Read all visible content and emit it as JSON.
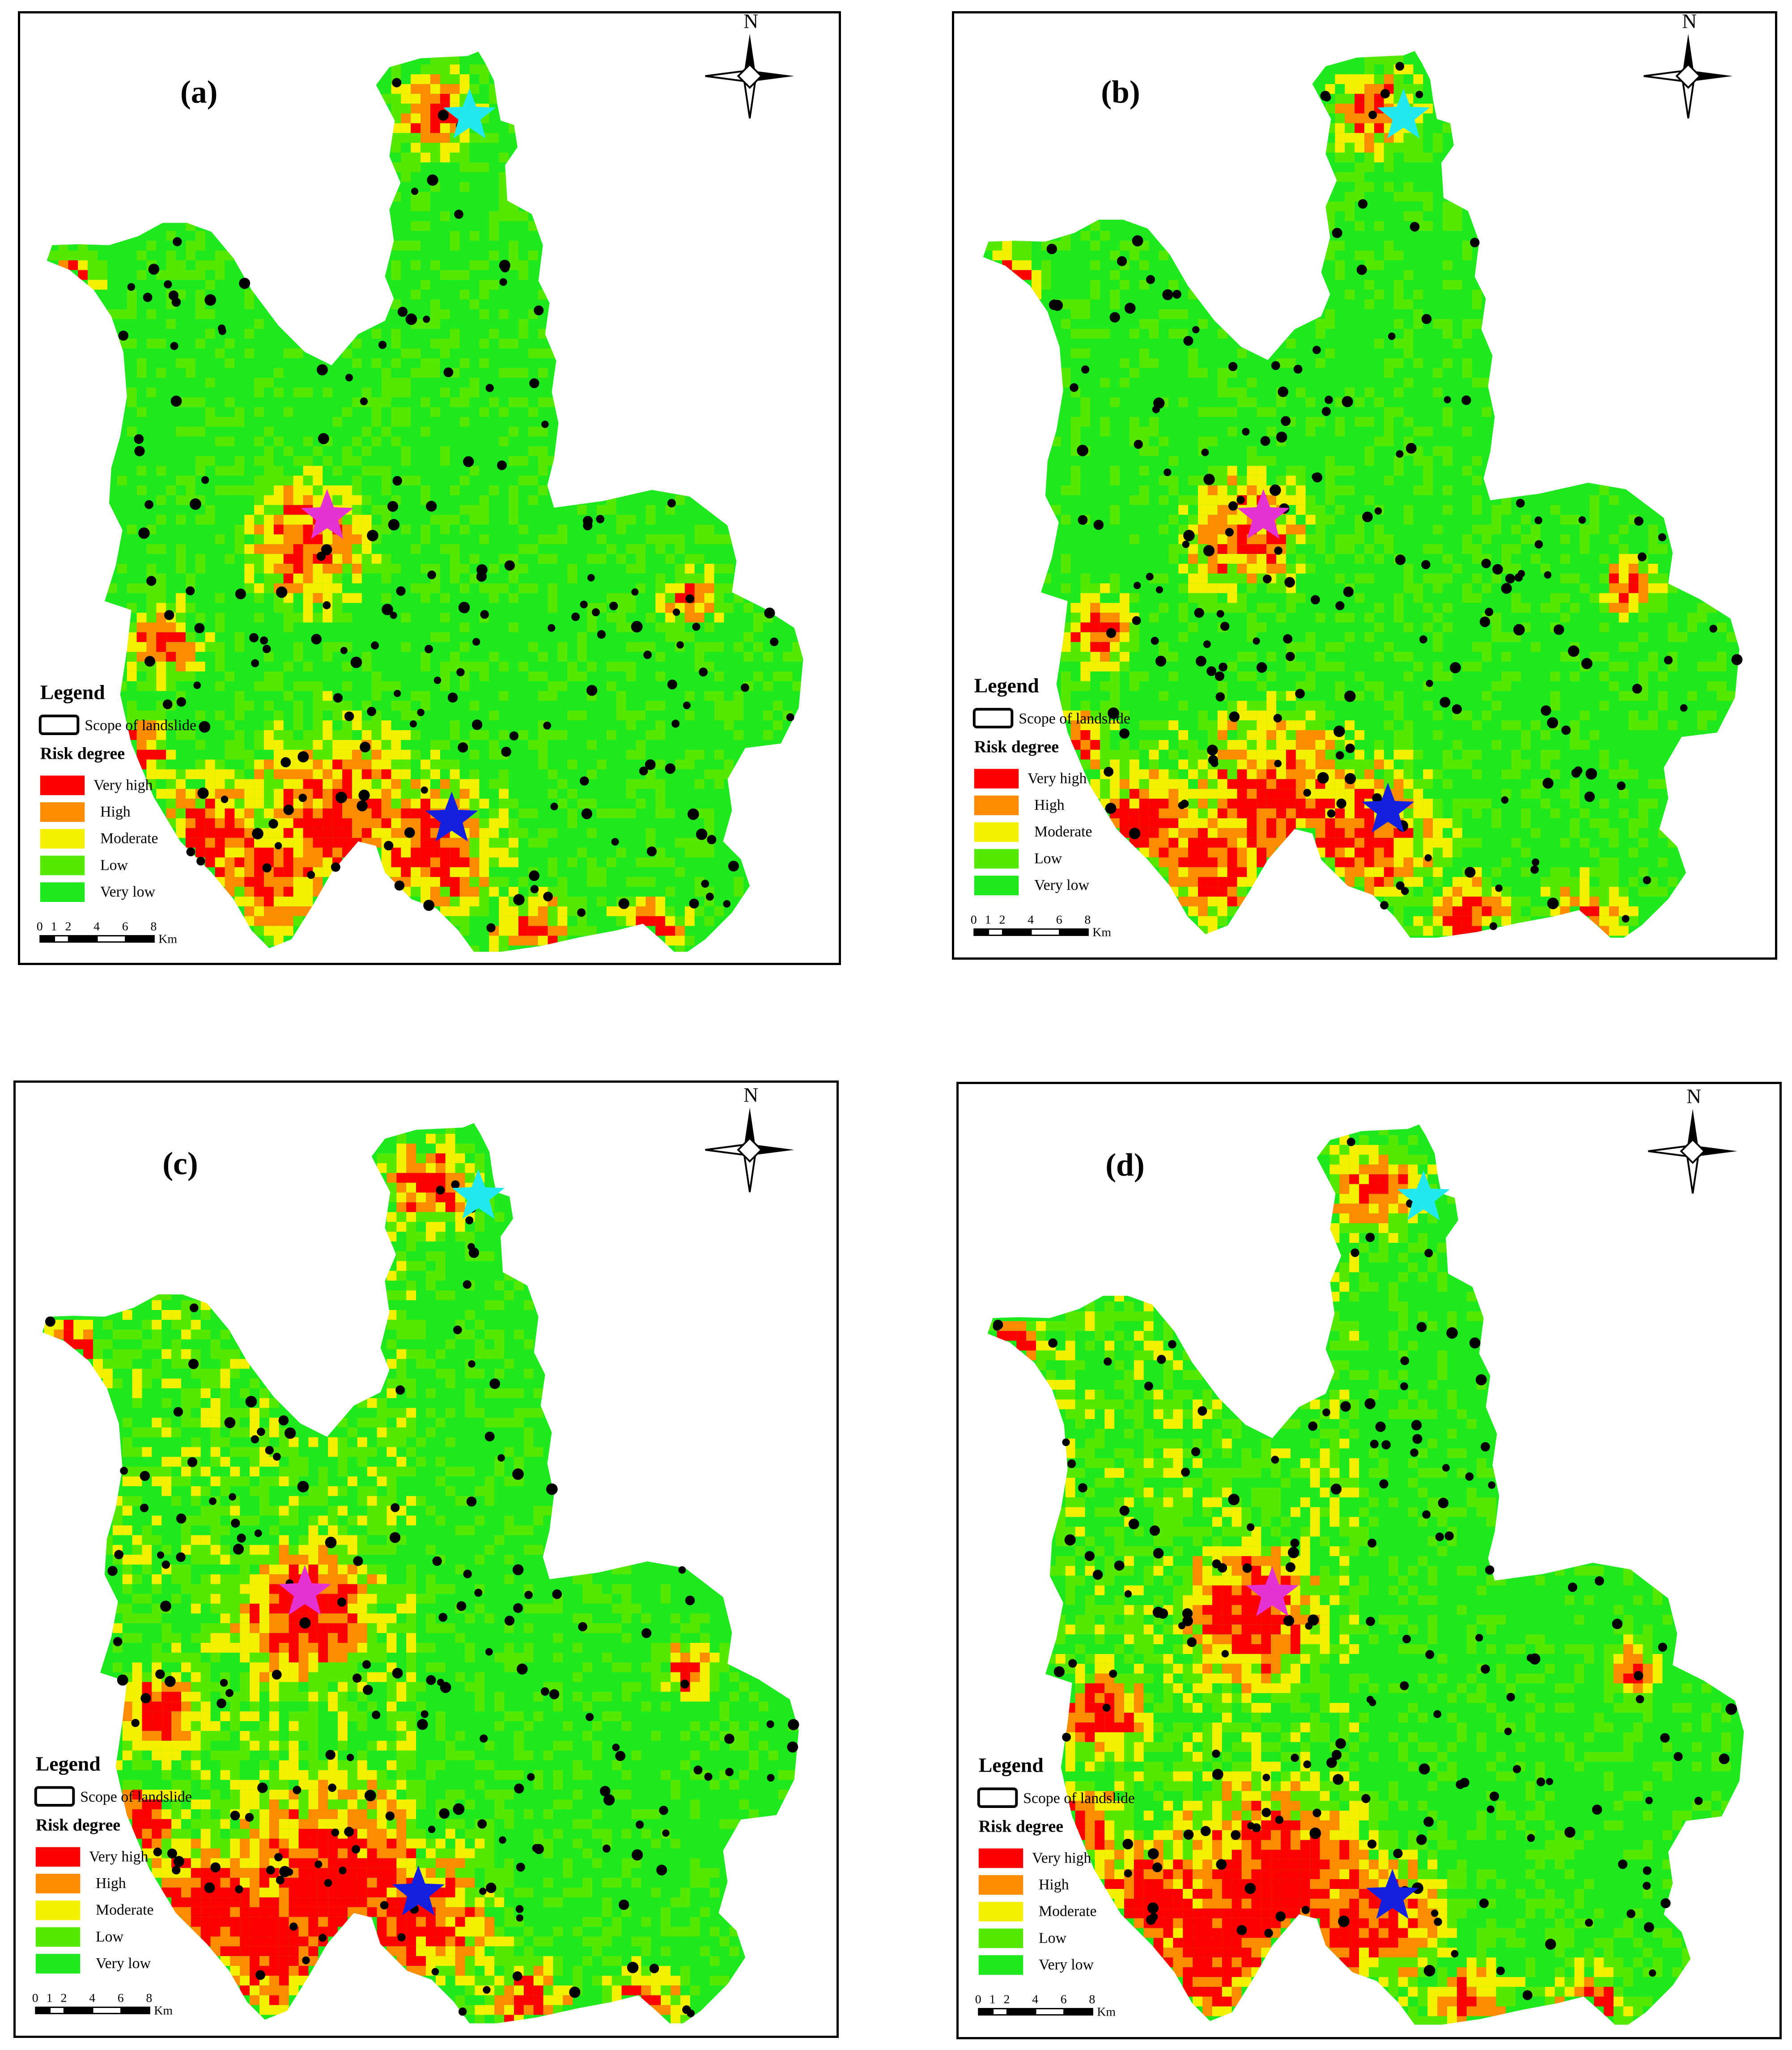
{
  "colors": {
    "very_high": "#ff0000",
    "high": "#ff8c00",
    "moderate": "#f5f000",
    "low": "#55e800",
    "very_low": "#1ee81e",
    "landslide_point": "#000000",
    "star_north": "#22e8ef",
    "star_center": "#e632d2",
    "star_south": "#1420e0"
  },
  "compass": {
    "label": "N",
    "icon": "north-arrow-icon"
  },
  "legend": {
    "title": "Legend",
    "scope_label": "Scope of landslide",
    "risk_title": "Risk degree",
    "items": [
      "Very high",
      "High",
      "Moderate",
      "Low",
      "Very low"
    ]
  },
  "scale": {
    "ticks": [
      "0",
      "1",
      "2",
      "4",
      "6",
      "8"
    ],
    "unit": "Km"
  },
  "panels": [
    {
      "label": "(a)"
    },
    {
      "label": "(b)"
    },
    {
      "label": "(c)"
    },
    {
      "label": "(d)"
    }
  ]
}
